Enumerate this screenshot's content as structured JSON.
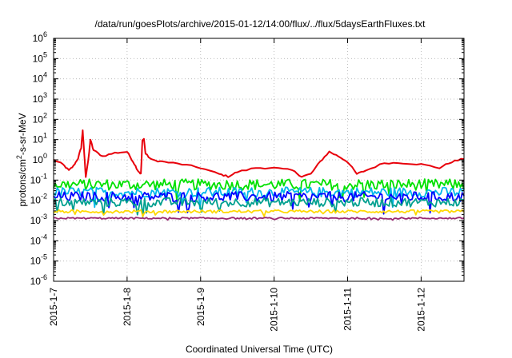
{
  "chart_data": {
    "type": "line",
    "title": "/data/run/goesPlots/archive/2015-01-12/14:00/flux/../flux/5daysEarthFluxes.txt",
    "xlabel": "Coordinated Universal Time (UTC)",
    "ylabel": "protons/cm2-s-sr-MeV",
    "ylabel_parts": {
      "pre": "protons/cm",
      "sup": "2",
      "post": "-s-sr-MeV"
    },
    "y_scale": "log",
    "ylim": [
      1e-06,
      1000000.0
    ],
    "y_ticks": [
      {
        "exp": -6
      },
      {
        "exp": -5
      },
      {
        "exp": -4
      },
      {
        "exp": -3
      },
      {
        "exp": -2
      },
      {
        "exp": -1
      },
      {
        "exp": 0
      },
      {
        "exp": 1
      },
      {
        "exp": 2
      },
      {
        "exp": 3
      },
      {
        "exp": 4
      },
      {
        "exp": 5
      },
      {
        "exp": 6
      }
    ],
    "y_tick_base": "10",
    "xlim": [
      "2015-01-07",
      "2015-01-12 14:00"
    ],
    "x_ticks": [
      "2015-1-7",
      "2015-1-8",
      "2015-1-9",
      "2015-1-10",
      "2015-1-11",
      "2015-1-12"
    ],
    "grid": true,
    "legend": "none",
    "series": [
      {
        "color": "#e8000b",
        "points": [
          [
            "2015-01-07 00:00",
            1.0
          ],
          [
            "2015-01-07 03:00",
            0.6
          ],
          [
            "2015-01-07 05:00",
            0.3
          ],
          [
            "2015-01-07 06:30",
            0.5
          ],
          [
            "2015-01-07 08:00",
            1.2
          ],
          [
            "2015-01-07 09:00",
            4
          ],
          [
            "2015-01-07 09:30",
            30
          ],
          [
            "2015-01-07 10:00",
            2
          ],
          [
            "2015-01-07 10:30",
            0.15
          ],
          [
            "2015-01-07 11:30",
            1.5
          ],
          [
            "2015-01-07 12:00",
            10
          ],
          [
            "2015-01-07 13:00",
            3
          ],
          [
            "2015-01-07 16:00",
            1.5
          ],
          [
            "2015-01-07 20:00",
            2.2
          ],
          [
            "2015-01-08 00:00",
            2.5
          ],
          [
            "2015-01-08 02:00",
            0.8
          ],
          [
            "2015-01-08 03:30",
            0.3
          ],
          [
            "2015-01-08 04:30",
            0.2
          ],
          [
            "2015-01-08 05:00",
            9
          ],
          [
            "2015-01-08 05:30",
            11
          ],
          [
            "2015-01-08 06:00",
            2
          ],
          [
            "2015-01-08 08:00",
            1.0
          ],
          [
            "2015-01-08 12:00",
            0.8
          ],
          [
            "2015-01-08 18:00",
            0.6
          ],
          [
            "2015-01-09 00:00",
            0.4
          ],
          [
            "2015-01-09 06:00",
            0.2
          ],
          [
            "2015-01-09 09:00",
            0.15
          ],
          [
            "2015-01-09 12:00",
            0.25
          ],
          [
            "2015-01-09 18:00",
            0.4
          ],
          [
            "2015-01-10 00:00",
            0.4
          ],
          [
            "2015-01-10 06:00",
            0.3
          ],
          [
            "2015-01-10 09:00",
            0.15
          ],
          [
            "2015-01-10 12:00",
            0.2
          ],
          [
            "2015-01-10 15:00",
            0.8
          ],
          [
            "2015-01-10 18:00",
            2.5
          ],
          [
            "2015-01-10 21:00",
            1.5
          ],
          [
            "2015-01-11 00:00",
            0.8
          ],
          [
            "2015-01-11 03:00",
            0.2
          ],
          [
            "2015-01-11 06:00",
            0.3
          ],
          [
            "2015-01-11 12:00",
            0.7
          ],
          [
            "2015-01-11 18:00",
            0.7
          ],
          [
            "2015-01-12 00:00",
            0.6
          ],
          [
            "2015-01-12 06:00",
            0.4
          ],
          [
            "2015-01-12 10:00",
            0.8
          ],
          [
            "2015-01-12 14:00",
            1.1
          ]
        ]
      },
      {
        "color": "#00e000",
        "level": 0.06,
        "spread": 0.55
      },
      {
        "color": "#00b7eb",
        "level": 0.025,
        "spread": 0.5
      },
      {
        "color": "#0000ff",
        "level": 0.015,
        "spread": 0.5
      },
      {
        "color": "#00a090",
        "level": 0.008,
        "spread": 0.45
      },
      {
        "color": "#ffd800",
        "level": 0.0028,
        "spread": 0.15
      },
      {
        "color": "#9a2a72",
        "level": 0.0013,
        "spread": 0.08
      }
    ]
  }
}
